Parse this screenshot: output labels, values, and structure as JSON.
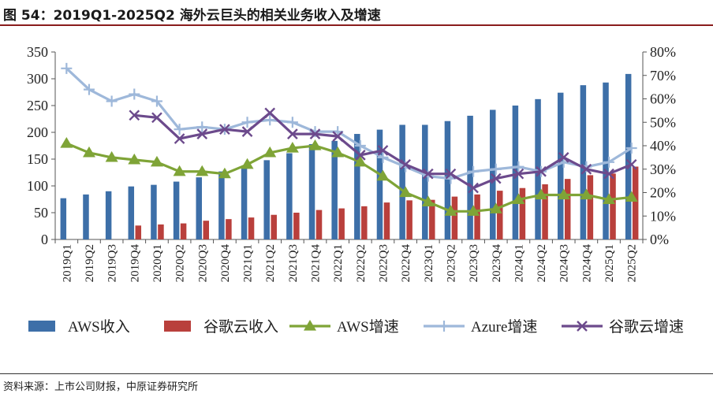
{
  "figure": {
    "title": "图 54：2019Q1-2025Q2 海外云巨头的相关业务收入及增速",
    "source": "资料来源：上市公司财报，中原证券研究所"
  },
  "colors": {
    "aws_revenue": "#3d6fa8",
    "google_revenue": "#b9403c",
    "aws_growth": "#7fa437",
    "azure_growth": "#9eb8da",
    "google_growth": "#6c4a8c",
    "title_rule": "#8a1c1c"
  },
  "chart_data": {
    "type": "bar",
    "title": "2019Q1-2025Q2 海外云巨头的相关业务收入及增速",
    "categories": [
      "2019Q1",
      "2019Q2",
      "2019Q3",
      "2019Q4",
      "2020Q1",
      "2020Q2",
      "2020Q3",
      "2020Q4",
      "2021Q1",
      "2021Q2",
      "2021Q3",
      "2021Q4",
      "2022Q1",
      "2022Q2",
      "2022Q3",
      "2022Q4",
      "2023Q1",
      "2023Q2",
      "2023Q3",
      "2023Q4",
      "2024Q1",
      "2024Q2",
      "2024Q3",
      "2024Q4",
      "2025Q1",
      "2025Q2"
    ],
    "left_axis": {
      "range": [
        0,
        350
      ],
      "ticks": [
        "0",
        "50",
        "100",
        "150",
        "200",
        "250",
        "300",
        "350"
      ]
    },
    "right_axis": {
      "range": [
        0,
        80
      ],
      "ticks": [
        "0%",
        "10%",
        "20%",
        "30%",
        "40%",
        "50%",
        "60%",
        "70%",
        "80%"
      ]
    },
    "bar_series": [
      {
        "name": "AWS收入",
        "axis": "left",
        "values": [
          77,
          84,
          90,
          99,
          102,
          108,
          116,
          127,
          135,
          148,
          161,
          178,
          184,
          197,
          205,
          214,
          214,
          221,
          231,
          242,
          250,
          262,
          274,
          288,
          293,
          309
        ]
      },
      {
        "name": "谷歌云收入",
        "axis": "left",
        "values": [
          null,
          null,
          null,
          26,
          28,
          30,
          35,
          38,
          41,
          46,
          50,
          55,
          58,
          62,
          69,
          73,
          74,
          80,
          84,
          91,
          96,
          103,
          113,
          120,
          123,
          136
        ]
      }
    ],
    "line_series": [
      {
        "name": "AWS增速",
        "axis": "right",
        "marker": "triangle",
        "values": [
          41,
          37,
          35,
          34,
          33,
          29,
          29,
          28,
          32,
          37,
          39,
          40,
          37,
          33,
          27,
          20,
          16,
          12,
          12,
          13,
          17,
          19,
          19,
          19,
          17,
          18
        ]
      },
      {
        "name": "Azure增速",
        "axis": "right",
        "marker": "plus",
        "values": [
          73,
          64,
          59,
          62,
          59,
          47,
          48,
          47,
          50,
          51,
          50,
          46,
          46,
          40,
          35,
          31,
          27,
          26,
          29,
          30,
          31,
          29,
          33,
          31,
          33,
          39
        ]
      },
      {
        "name": "谷歌云增速",
        "axis": "right",
        "marker": "x",
        "values": [
          null,
          null,
          null,
          53,
          52,
          43,
          45,
          47,
          46,
          54,
          45,
          45,
          44,
          36,
          38,
          32,
          28,
          28,
          22,
          26,
          28,
          29,
          35,
          30,
          28,
          32
        ]
      }
    ],
    "legend": {
      "position": "bottom",
      "items": [
        "AWS收入",
        "谷歌云收入",
        "AWS增速",
        "Azure增速",
        "谷歌云增速"
      ]
    }
  }
}
